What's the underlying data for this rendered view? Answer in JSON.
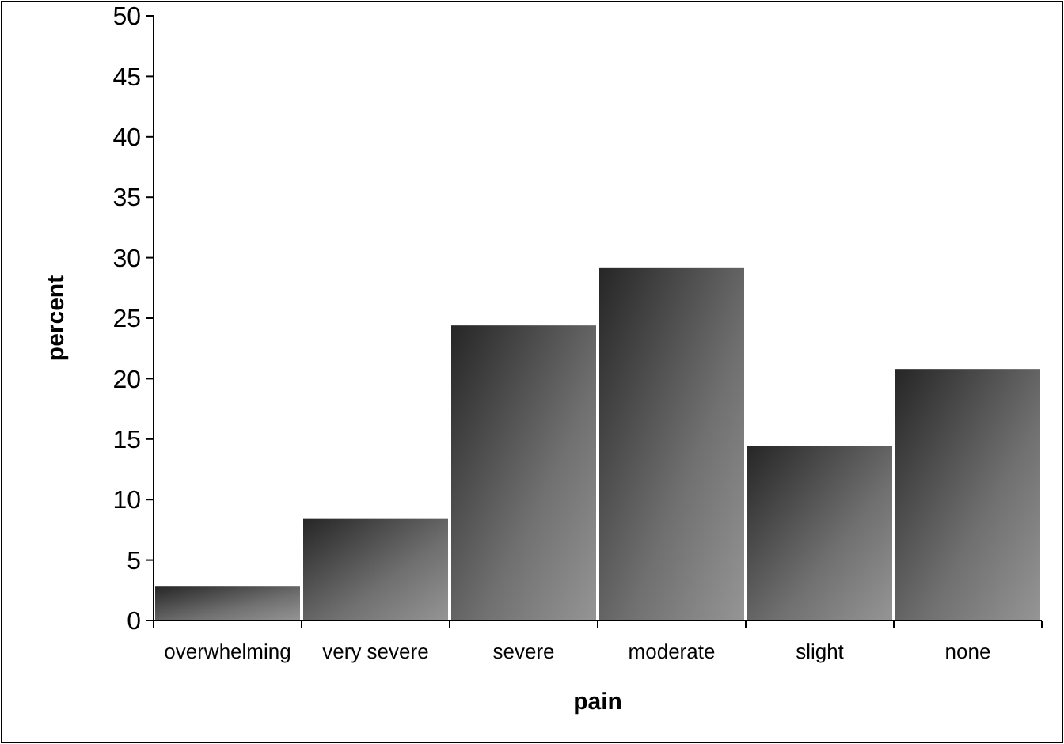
{
  "chart_data": {
    "type": "bar",
    "xlabel": "pain",
    "ylabel": "percent",
    "categories": [
      "overwhelming",
      "very severe",
      "severe",
      "moderate",
      "slight",
      "none"
    ],
    "values": [
      2.8,
      8.4,
      24.4,
      29.2,
      14.4,
      20.8
    ],
    "color": "#707070",
    "ylim": [
      0,
      50
    ],
    "yticks": [
      0,
      5,
      10,
      15,
      20,
      25,
      30,
      35,
      40,
      45,
      50
    ],
    "grid": false
  }
}
